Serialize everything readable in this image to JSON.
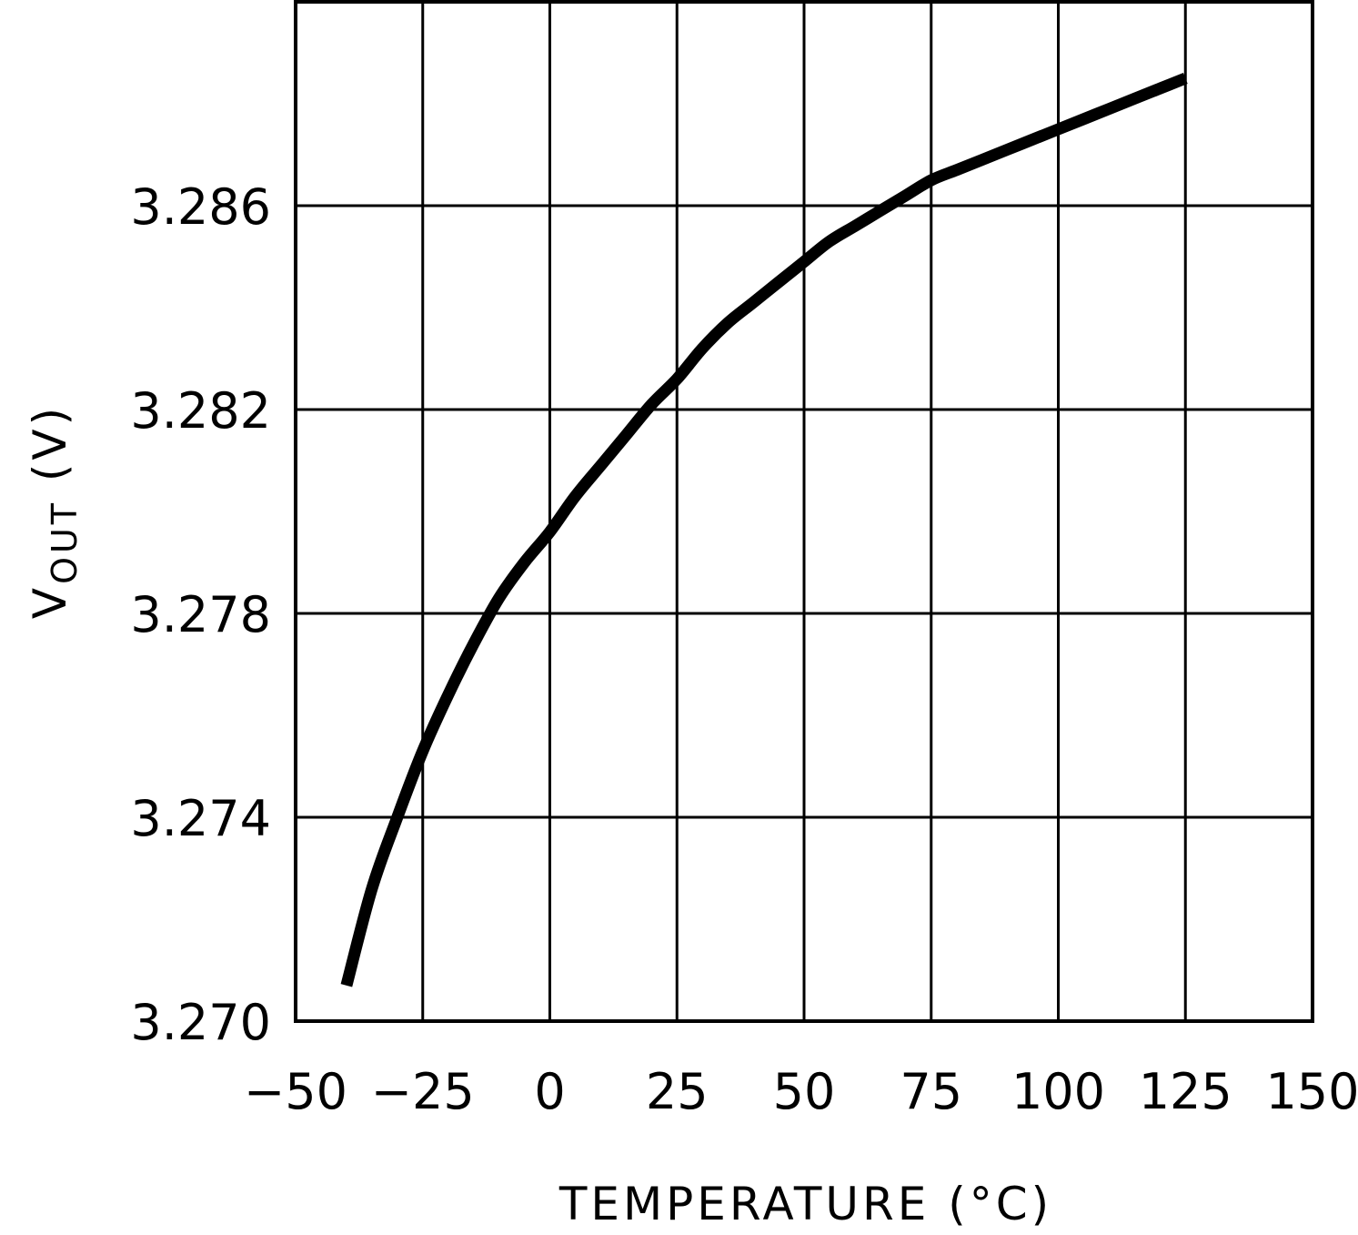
{
  "chart_data": {
    "type": "line",
    "title": "",
    "xlabel": "TEMPERATURE (°C)",
    "ylabel": {
      "main": "V",
      "subscript": "OUT",
      "unit": " (V)"
    },
    "xlim": [
      -50,
      150
    ],
    "ylim": [
      3.27,
      3.29
    ],
    "xticks": [
      -50,
      -25,
      0,
      25,
      50,
      75,
      100,
      125,
      150
    ],
    "xtick_labels": [
      "−50",
      "−25",
      "0",
      "25",
      "50",
      "75",
      "100",
      "125",
      "150"
    ],
    "yticks": [
      3.27,
      3.274,
      3.278,
      3.282,
      3.286
    ],
    "ytick_labels": [
      "3.270",
      "3.274",
      "3.278",
      "3.282",
      "3.286"
    ],
    "ygrid_values": [
      3.274,
      3.278,
      3.282,
      3.286
    ],
    "grid": true,
    "legend": "none",
    "series": [
      {
        "color": "#000000",
        "x": [
          -40,
          -35,
          -30,
          -25,
          -20,
          -15,
          -10,
          -5,
          0,
          5,
          10,
          15,
          20,
          25,
          30,
          35,
          40,
          45,
          50,
          55,
          60,
          65,
          70,
          75,
          80,
          85,
          90,
          95,
          100,
          105,
          110,
          115,
          120,
          125
        ],
        "y": [
          3.2707,
          3.2726,
          3.274,
          3.2753,
          3.2764,
          3.2774,
          3.2783,
          3.279,
          3.2796,
          3.2803,
          3.2809,
          3.2815,
          3.2821,
          3.2826,
          3.2832,
          3.2837,
          3.2841,
          3.2845,
          3.2849,
          3.2853,
          3.2856,
          3.2859,
          3.2862,
          3.2865,
          3.2867,
          3.2869,
          3.2871,
          3.2873,
          3.2875,
          3.2877,
          3.2879,
          3.2881,
          3.2883,
          3.2885
        ]
      }
    ]
  }
}
